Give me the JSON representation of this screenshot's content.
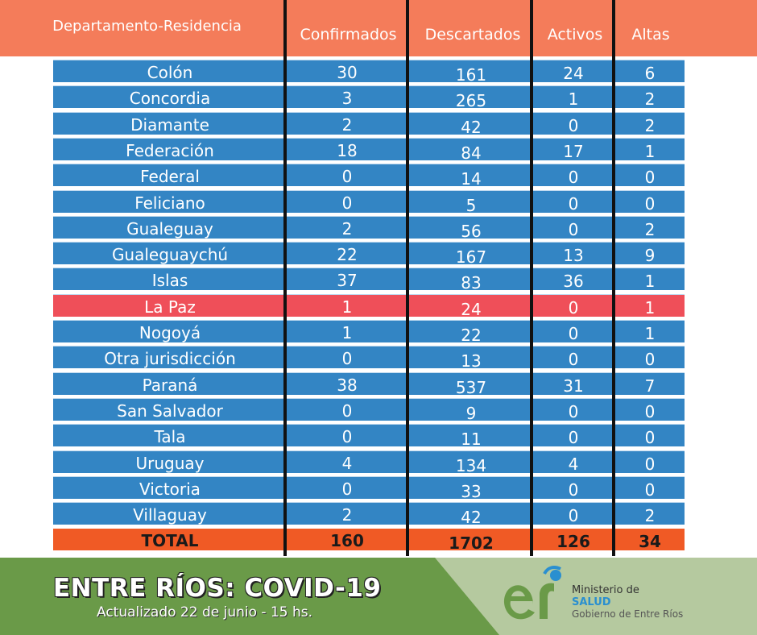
{
  "header": {
    "columns": [
      "Departamento-Residencia",
      "Confirmados",
      "Descartados",
      "Activos",
      "Altas"
    ]
  },
  "rows": [
    {
      "name": "Colón",
      "confirmados": "30",
      "descartados": "161",
      "activos": "24",
      "altas": "6"
    },
    {
      "name": "Concordia",
      "confirmados": "3",
      "descartados": "265",
      "activos": "1",
      "altas": "2"
    },
    {
      "name": "Diamante",
      "confirmados": "2",
      "descartados": "42",
      "activos": "0",
      "altas": "2"
    },
    {
      "name": "Federación",
      "confirmados": "18",
      "descartados": "84",
      "activos": "17",
      "altas": "1"
    },
    {
      "name": "Federal",
      "confirmados": "0",
      "descartados": "14",
      "activos": "0",
      "altas": "0"
    },
    {
      "name": "Feliciano",
      "confirmados": "0",
      "descartados": "5",
      "activos": "0",
      "altas": "0"
    },
    {
      "name": "Gualeguay",
      "confirmados": "2",
      "descartados": "56",
      "activos": "0",
      "altas": "2"
    },
    {
      "name": "Gualeguaychú",
      "confirmados": "22",
      "descartados": "167",
      "activos": "13",
      "altas": "9"
    },
    {
      "name": "Islas",
      "confirmados": "37",
      "descartados": "83",
      "activos": "36",
      "altas": "1"
    },
    {
      "name": "La Paz",
      "confirmados": "1",
      "descartados": "24",
      "activos": "0",
      "altas": "1",
      "highlight": true
    },
    {
      "name": "Nogoyá",
      "confirmados": "1",
      "descartados": "22",
      "activos": "0",
      "altas": "1"
    },
    {
      "name": "Otra jurisdicción",
      "confirmados": "0",
      "descartados": "13",
      "activos": "0",
      "altas": "0"
    },
    {
      "name": "Paraná",
      "confirmados": "38",
      "descartados": "537",
      "activos": "31",
      "altas": "7"
    },
    {
      "name": "San Salvador",
      "confirmados": "0",
      "descartados": "9",
      "activos": "0",
      "altas": "0"
    },
    {
      "name": "Tala",
      "confirmados": "0",
      "descartados": "11",
      "activos": "0",
      "altas": "0"
    },
    {
      "name": "Uruguay",
      "confirmados": "4",
      "descartados": "134",
      "activos": "4",
      "altas": "0"
    },
    {
      "name": "Victoria",
      "confirmados": "0",
      "descartados": "33",
      "activos": "0",
      "altas": "0"
    },
    {
      "name": "Villaguay",
      "confirmados": "2",
      "descartados": "42",
      "activos": "0",
      "altas": "2"
    }
  ],
  "total": {
    "name": "TOTAL",
    "confirmados": "160",
    "descartados": "1702",
    "activos": "126",
    "altas": "34"
  },
  "footer": {
    "title": "ENTRE RÍOS: COVID-19",
    "subtitle": "Actualizado 22 de junio - 15 hs.",
    "ministry_line1": "Ministerio de",
    "ministry_line2": "SALUD",
    "ministry_line3": "Gobierno de Entre Ríos",
    "logo_icon": "er-logo-icon"
  },
  "colors": {
    "header": "#f47c5a",
    "row": "#3385c4",
    "highlight": "#ef4f59",
    "total": "#f05a25",
    "footer_dark": "#6a9a48",
    "footer_light": "#b5c99f"
  }
}
